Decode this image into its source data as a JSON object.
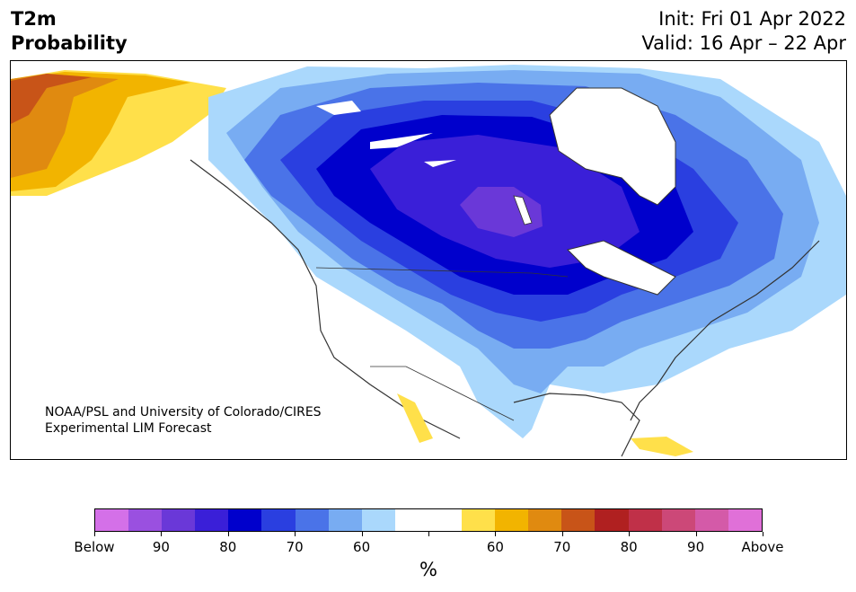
{
  "title": {
    "left_line1": "T2m",
    "left_line2": "Probability",
    "right_line1": "Init: Fri 01 Apr 2022",
    "right_line2": "Valid: 16 Apr – 22 Apr"
  },
  "credit": {
    "line1": "NOAA/PSL and University of Colorado/CIRES",
    "line2": "Experimental LIM Forecast"
  },
  "colorbar": {
    "colors": [
      "#d470e8",
      "#9a50e0",
      "#6a38d8",
      "#3a1fd8",
      "#0000cc",
      "#2a3fe0",
      "#4a73e8",
      "#78acf2",
      "#aad8fc",
      "#ffffff",
      "#ffffff",
      "#ffe04a",
      "#f2b400",
      "#e08a10",
      "#c85418",
      "#b02020",
      "#c03048",
      "#cc4878",
      "#d45aa8",
      "#e070d8"
    ],
    "tick_labels": [
      "Below",
      "90",
      "80",
      "70",
      "60",
      "",
      "60",
      "70",
      "80",
      "90",
      "Above"
    ],
    "unit": "%"
  },
  "map_colors": {
    "ocean": "#ffffff",
    "coast": "#333333",
    "probabilities": {
      "cold_60": "#aad8fc",
      "cold_65": "#78acf2",
      "cold_70": "#4a73e8",
      "cold_75": "#2a3fe0",
      "cold_80": "#0000cc",
      "cold_85": "#3a1fd8",
      "cold_90": "#6a38d8",
      "warm_60": "#ffe04a",
      "warm_65": "#f2b400",
      "warm_70": "#e08a10",
      "warm_75": "#c85418"
    }
  }
}
